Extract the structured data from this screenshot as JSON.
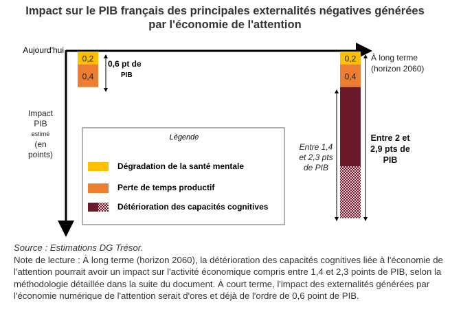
{
  "title_line1": "Impact sur le PIB français des principales externalités négatives générées",
  "title_line2": "par l'économie de l'attention",
  "chart_data": {
    "type": "bar",
    "stacked": true,
    "orientation": "downward",
    "categories": [
      "Aujourd'hui",
      "À long terme (horizon 2060)"
    ],
    "start_label": "Aujourd'hui",
    "end_label_line1": "À long terme",
    "end_label_line2": "(horizon 2060)",
    "ylabel_lines": [
      "Impact",
      "PIB",
      "estimé",
      "(en",
      "points)"
    ],
    "series": [
      {
        "name": "Dégradation de la santé mentale",
        "values": [
          0.2,
          0.2
        ],
        "labels": [
          "0,2",
          "0,2"
        ],
        "color": "#FFC000"
      },
      {
        "name": "Perte de temps productif",
        "values": [
          0.4,
          0.4
        ],
        "labels": [
          "0,4",
          "0,4"
        ],
        "color": "#ED7D31"
      },
      {
        "name": "Détérioration des capacités cognitives",
        "values": [
          0,
          1.4
        ],
        "range": [
          1.4,
          2.3
        ],
        "color": "#6B1A2B",
        "pattern": "hatched upper range"
      }
    ],
    "annotations": {
      "today_total_line1": "0,6 pt de",
      "today_total_line2": "PIB",
      "cognitive_range_lines": [
        "Entre 1,4",
        "et 2,3 pts",
        "de PIB"
      ],
      "longterm_total_lines": [
        "Entre 2 et",
        "2,9 pts de",
        "PIB"
      ]
    },
    "legend": {
      "title": "Légende",
      "placement": "center",
      "items": [
        "Dégradation de la santé mentale",
        "Perte de temps productif",
        "Détérioration des capacités cognitives"
      ]
    }
  },
  "source": "Source : Estimations DG Trésor.",
  "note": "Note de lecture : À long terme (horizon 2060), la détérioration des capacités cognitives liée à l'économie de l'attention pourrait avoir un impact sur l'activité économique compris entre 1,4 et 2,3 points de PIB, selon la méthodologie détaillée dans la suite du document. À court terme, l'impact des externalités générées par l'économie numérique de l'attention serait d'ores et déjà de l'ordre de 0,6 point de PIB."
}
